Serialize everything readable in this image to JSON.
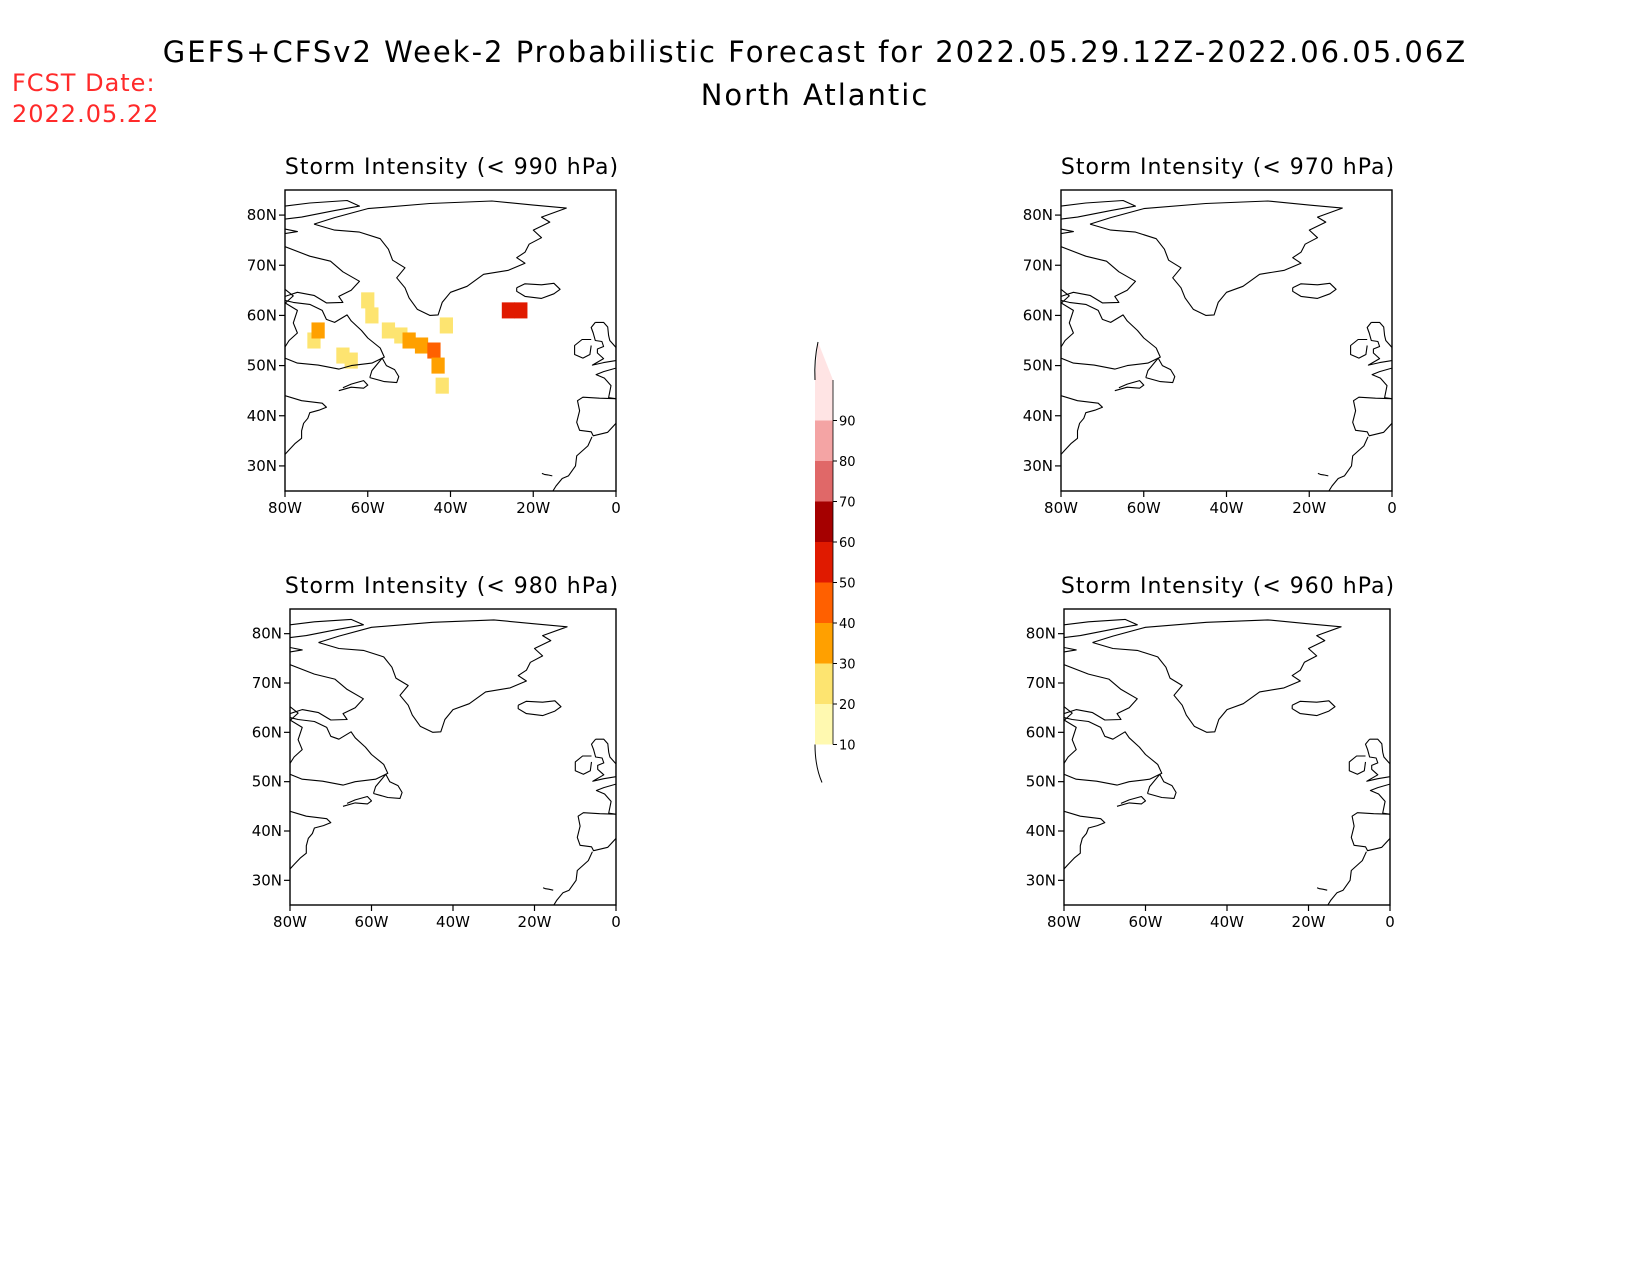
{
  "title": "GEFS+CFSv2 Week-2 Probabilistic Forecast for 2022.05.29.12Z-2022.06.05.06Z",
  "subtitle": "North Atlantic",
  "fcst_date_label": "FCST Date:",
  "fcst_date_value": "2022.05.22",
  "colors": {
    "title": "#000000",
    "fcst_date": "#ff2a2a",
    "levels": [
      "#fff9b0",
      "#fde470",
      "#ffa000",
      "#ff6000",
      "#e01a00",
      "#a50000",
      "#e06868",
      "#f4a4a4",
      "#ffe4e4"
    ]
  },
  "map": {
    "lon_range": [
      -80,
      0
    ],
    "lat_range": [
      25,
      85
    ],
    "x_ticks": [
      "80W",
      "60W",
      "40W",
      "20W",
      "0"
    ],
    "y_ticks": [
      "30N",
      "40N",
      "50N",
      "60N",
      "70N",
      "80N"
    ]
  },
  "colorbar": {
    "labels": [
      "10",
      "20",
      "30",
      "40",
      "50",
      "60",
      "70",
      "80",
      "90"
    ]
  },
  "panels": [
    {
      "id": "990",
      "title": "Storm Intensity (< 990 hPa)",
      "cells": [
        {
          "lon": -73,
          "lat": 55,
          "level": 1
        },
        {
          "lon": -72,
          "lat": 57,
          "level": 2
        },
        {
          "lon": -66,
          "lat": 52,
          "level": 1
        },
        {
          "lon": -64,
          "lat": 51,
          "level": 1
        },
        {
          "lon": -60,
          "lat": 63,
          "level": 1
        },
        {
          "lon": -59,
          "lat": 60,
          "level": 1
        },
        {
          "lon": -55,
          "lat": 57,
          "level": 1
        },
        {
          "lon": -52,
          "lat": 56,
          "level": 1
        },
        {
          "lon": -50,
          "lat": 55,
          "level": 2
        },
        {
          "lon": -47,
          "lat": 54,
          "level": 2
        },
        {
          "lon": -44,
          "lat": 53,
          "level": 3
        },
        {
          "lon": -43,
          "lat": 50,
          "level": 2
        },
        {
          "lon": -41,
          "lat": 58,
          "level": 1
        },
        {
          "lon": -42,
          "lat": 46,
          "level": 1
        },
        {
          "lon": -26,
          "lat": 61,
          "level": 4
        },
        {
          "lon": -23,
          "lat": 61,
          "level": 4
        }
      ]
    },
    {
      "id": "970",
      "title": "Storm Intensity (< 970 hPa)",
      "cells": []
    },
    {
      "id": "980",
      "title": "Storm Intensity (< 980 hPa)",
      "cells": []
    },
    {
      "id": "960",
      "title": "Storm Intensity (< 960 hPa)",
      "cells": []
    }
  ]
}
